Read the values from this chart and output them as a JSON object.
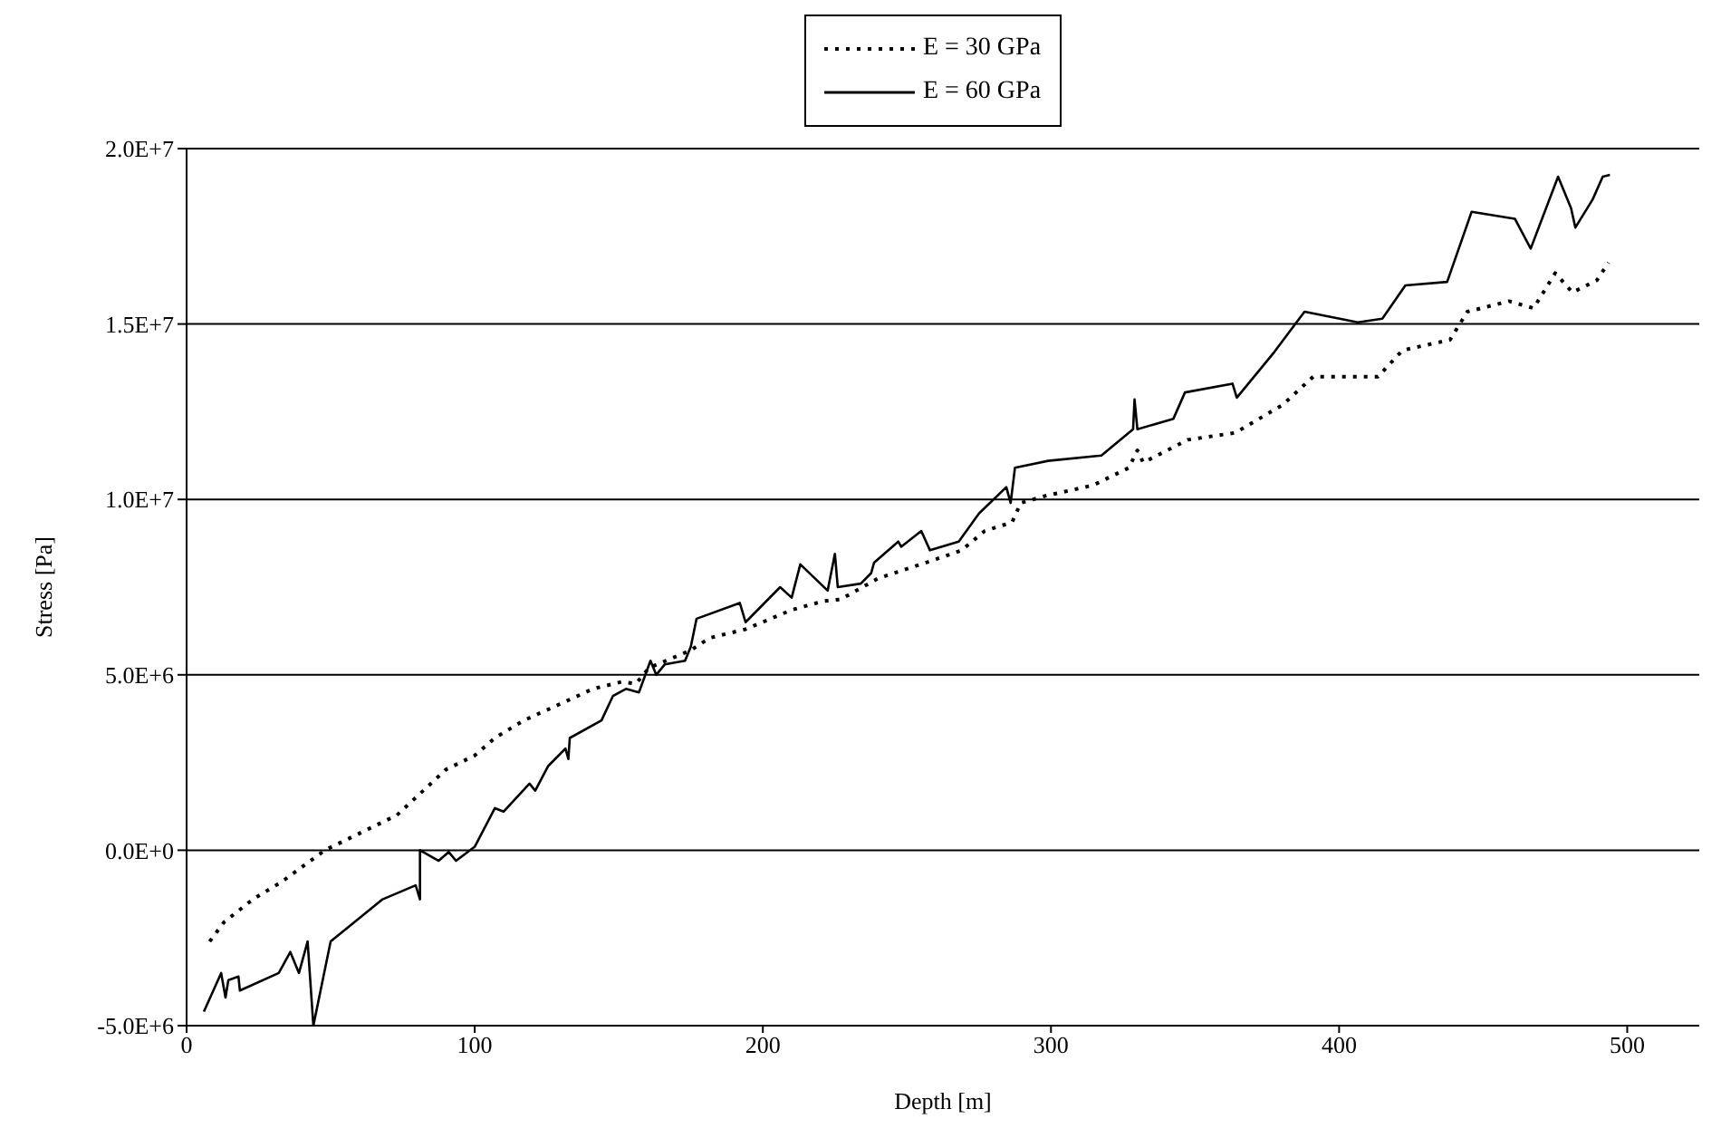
{
  "chart_data": {
    "type": "line",
    "xlabel": "Depth [m]",
    "ylabel": "Stress [Pa]",
    "xlim": [
      0,
      525
    ],
    "xticks": [
      0,
      100,
      200,
      300,
      400,
      500
    ],
    "ylim": [
      -5000000.0,
      20000000.0
    ],
    "yticks": [
      {
        "value": -5000000.0,
        "label": "-5.0E+6"
      },
      {
        "value": 0,
        "label": "0.0E+0"
      },
      {
        "value": 5000000.0,
        "label": "5.0E+6"
      },
      {
        "value": 10000000.0,
        "label": "1.0E+7"
      },
      {
        "value": 15000000.0,
        "label": "1.5E+7"
      },
      {
        "value": 20000000.0,
        "label": "2.0E+7"
      }
    ],
    "grid": "y",
    "legend": "top",
    "marker": "none",
    "series": [
      {
        "name": "E = 60 GPa",
        "color": "#000000",
        "line_style": "solid",
        "x": [
          6,
          12,
          13.5,
          14.5,
          18,
          18.5,
          32,
          36,
          39,
          42,
          44,
          50,
          68,
          79.5,
          81,
          81,
          87.5,
          91,
          93.5,
          100,
          107,
          110,
          119,
          121,
          125.5,
          131.5,
          132.5,
          133,
          144,
          148,
          152.5,
          157,
          161,
          163,
          166,
          173,
          175,
          177,
          192,
          194,
          206,
          210,
          213,
          222.5,
          225,
          226,
          234,
          237.6,
          238.6,
          247,
          248,
          255,
          258,
          268,
          275,
          284.5,
          286,
          287.5,
          299,
          317.5,
          328.5,
          329,
          330,
          342.5,
          346.5,
          363,
          364.5,
          377.5,
          388,
          406.5,
          415,
          423,
          437.5,
          446,
          461,
          466.5,
          476,
          480.5,
          482,
          488,
          491.5,
          494
        ],
        "values": [
          -4600000.0,
          -3500000.0,
          -4200000.0,
          -3700000.0,
          -3600000.0,
          -4000000.0,
          -3500000.0,
          -2900000.0,
          -3500000.0,
          -2600000.0,
          -5000000.0,
          -2600000.0,
          -1400000.0,
          -1000000.0,
          -1400000.0,
          0,
          -300000.0,
          -50000.0,
          -300000.0,
          100000.0,
          1200000.0,
          1100000.0,
          1900000.0,
          1700000.0,
          2400000.0,
          2900000.0,
          2600000.0,
          3200000.0,
          3700000.0,
          4400000.0,
          4600000.0,
          4500000.0,
          5400000.0,
          5000000.0,
          5300000.0,
          5400000.0,
          5800000.0,
          6600000.0,
          7050000.0,
          6500000.0,
          7500000.0,
          7200000.0,
          8150000.0,
          7400000.0,
          8450000.0,
          7500000.0,
          7600000.0,
          7900000.0,
          8200000.0,
          8800000.0,
          8650000.0,
          9100000.0,
          8550000.0,
          8800000.0,
          9600000.0,
          10350000.0,
          9900000.0,
          10900000.0,
          11100000.0,
          11250000.0,
          12000000.0,
          12850000.0,
          12000000.0,
          12300000.0,
          13050000.0,
          13300000.0,
          12900000.0,
          14200000.0,
          15350000.0,
          15050000.0,
          15150000.0,
          16100000.0,
          16200000.0,
          18200000.0,
          18000000.0,
          17150000.0,
          19200000.0,
          18300000.0,
          17750000.0,
          18550000.0,
          19200000.0,
          19250000.0
        ]
      },
      {
        "name": "E = 30 GPa",
        "color": "#000000",
        "line_style": "dotted",
        "x": [
          8,
          13,
          23,
          33,
          43,
          48,
          58,
          73,
          90,
          100,
          107,
          117,
          130.5,
          141,
          151,
          156,
          160.5,
          175,
          181.5,
          194,
          210,
          221,
          227,
          240,
          258.5,
          269,
          277,
          286.5,
          289.5,
          298,
          314.5,
          327,
          330,
          332,
          347.5,
          364,
          380.5,
          391,
          413.5,
          422,
          438.5,
          444.5,
          459,
          467.5,
          475,
          481,
          489.5,
          493.5
        ],
        "values": [
          -2600000.0,
          -2050000.0,
          -1400000.0,
          -900000.0,
          -300000.0,
          0,
          400000.0,
          1000000.0,
          2300000.0,
          2700000.0,
          3200000.0,
          3700000.0,
          4200000.0,
          4600000.0,
          4800000.0,
          4750000.0,
          5200000.0,
          5700000.0,
          6050000.0,
          6300000.0,
          6850000.0,
          7100000.0,
          7150000.0,
          7750000.0,
          8250000.0,
          8550000.0,
          9100000.0,
          9350000.0,
          9900000.0,
          10100000.0,
          10400000.0,
          10900000.0,
          11400000.0,
          11050000.0,
          11700000.0,
          11900000.0,
          12700000.0,
          13500000.0,
          13500000.0,
          14250000.0,
          14550000.0,
          15350000.0,
          15650000.0,
          15450000.0,
          16450000.0,
          15900000.0,
          16250000.0,
          16750000.0
        ]
      }
    ]
  }
}
